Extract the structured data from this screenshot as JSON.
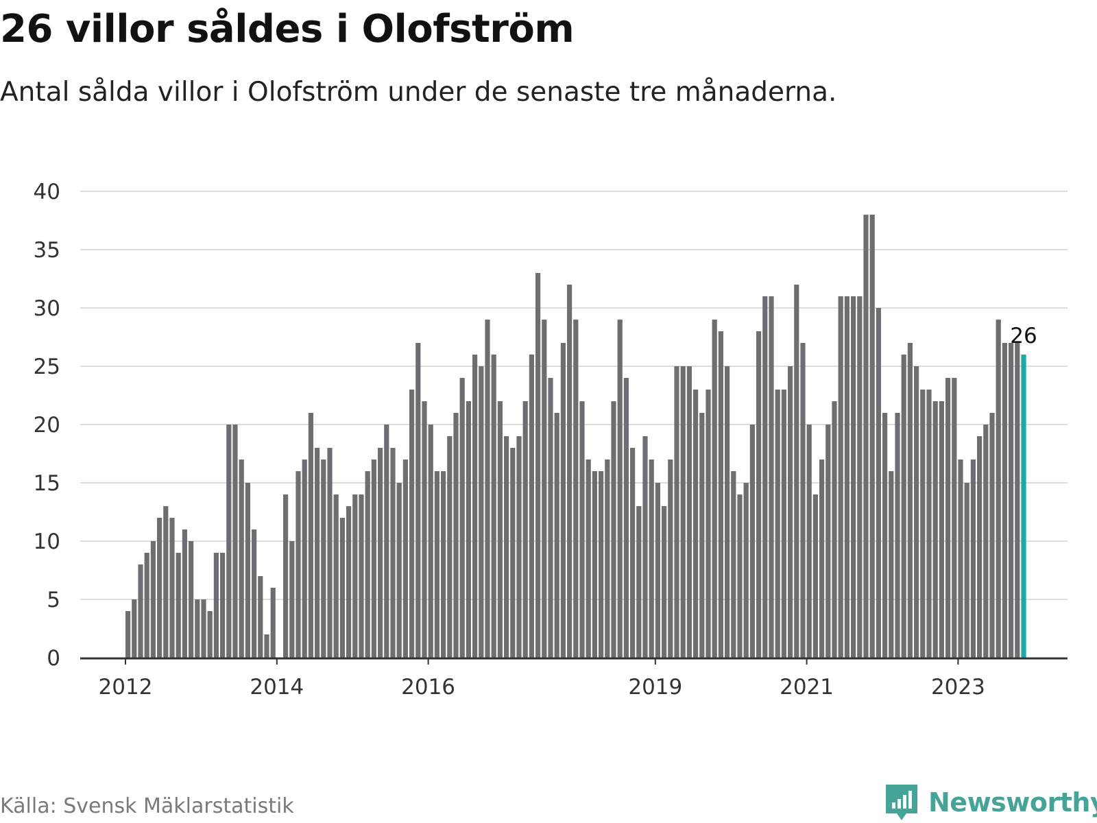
{
  "header": {
    "title": "26 villor såldes i Olofström",
    "subtitle": "Antal sålda villor i Olofström under de senaste tre månaderna."
  },
  "footer": {
    "source": "Källa: Svensk Mäklarstatistik",
    "brand_name": "Newsworthy",
    "brand_icon": "bar-chart-icon"
  },
  "colors": {
    "bar": "#6d6d72",
    "highlight": "#1ba9a0",
    "brand": "#46a397",
    "grid": "#dddddd",
    "axis": "#333333"
  },
  "chart_data": {
    "type": "bar",
    "title": "26 villor såldes i Olofström",
    "subtitle": "Antal sålda villor i Olofström under de senaste tre månaderna.",
    "xlabel": "",
    "ylabel": "",
    "ylim": [
      0,
      40
    ],
    "yticks": [
      0,
      5,
      10,
      15,
      20,
      25,
      30,
      35,
      40
    ],
    "grid": true,
    "start": "2012-01",
    "xtick_labels": [
      "2012",
      "2014",
      "2016",
      "2019",
      "2021",
      "2023"
    ],
    "highlight_last": true,
    "annotation": "26",
    "values": [
      4,
      5,
      8,
      9,
      10,
      12,
      13,
      12,
      9,
      11,
      10,
      5,
      5,
      4,
      9,
      9,
      20,
      20,
      17,
      15,
      11,
      7,
      2,
      6,
      0,
      14,
      10,
      16,
      17,
      21,
      18,
      17,
      18,
      14,
      12,
      13,
      14,
      14,
      16,
      17,
      18,
      20,
      18,
      15,
      17,
      23,
      27,
      22,
      20,
      16,
      16,
      19,
      21,
      24,
      22,
      26,
      25,
      29,
      26,
      22,
      19,
      18,
      19,
      22,
      26,
      33,
      29,
      24,
      21,
      27,
      32,
      29,
      22,
      17,
      16,
      16,
      17,
      22,
      29,
      24,
      18,
      13,
      19,
      17,
      15,
      13,
      17,
      25,
      25,
      25,
      23,
      21,
      23,
      29,
      28,
      25,
      16,
      14,
      15,
      20,
      28,
      31,
      31,
      23,
      23,
      25,
      32,
      27,
      20,
      14,
      17,
      20,
      22,
      31,
      31,
      31,
      31,
      38,
      38,
      30,
      21,
      16,
      21,
      26,
      27,
      25,
      23,
      23,
      22,
      22,
      24,
      24,
      17,
      15,
      17,
      19,
      20,
      21,
      29,
      27,
      27,
      27,
      26
    ]
  }
}
